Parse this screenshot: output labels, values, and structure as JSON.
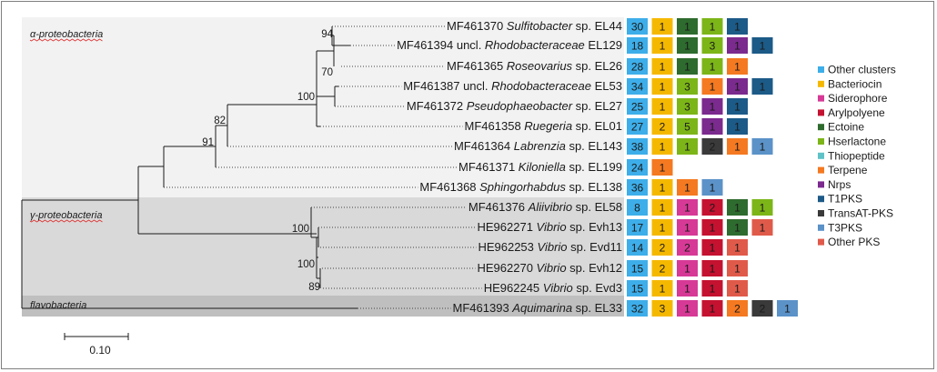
{
  "clades": [
    {
      "label": "α-proteobacteria",
      "color": "#f2f2f2"
    },
    {
      "label": "γ-proteobacteria",
      "color": "#d9d9d9"
    },
    {
      "label": "flavobacteria",
      "color": "#bfbfbf"
    }
  ],
  "taxa": [
    {
      "acc": "MF461370",
      "pre": "",
      "genus": "Sulfitobacter",
      "post": "sp. EL44",
      "counts": [
        30,
        1,
        1,
        1,
        1
      ],
      "types": [
        "other",
        "bac",
        "ect",
        "hse",
        "t1pks"
      ]
    },
    {
      "acc": "MF461394",
      "pre": "uncl.",
      "genus": "Rhodobacteraceae",
      "post": "EL129",
      "counts": [
        18,
        1,
        1,
        3,
        1,
        1
      ],
      "types": [
        "other",
        "bac",
        "ect",
        "hse",
        "nrps",
        "t1pks"
      ]
    },
    {
      "acc": "MF461365",
      "pre": "",
      "genus": "Roseovarius",
      "post": "sp. EL26",
      "counts": [
        28,
        1,
        1,
        1,
        1
      ],
      "types": [
        "other",
        "bac",
        "ect",
        "hse",
        "ter"
      ]
    },
    {
      "acc": "MF461387",
      "pre": "uncl.",
      "genus": "Rhodobacteraceae",
      "post": "EL53",
      "counts": [
        34,
        1,
        3,
        1,
        1,
        1
      ],
      "types": [
        "other",
        "bac",
        "hse",
        "ter",
        "nrps",
        "t1pks"
      ]
    },
    {
      "acc": "MF461372",
      "pre": "",
      "genus": "Pseudophaeobacter",
      "post": "sp. EL27",
      "counts": [
        25,
        1,
        3,
        1,
        1
      ],
      "types": [
        "other",
        "bac",
        "hse",
        "nrps",
        "t1pks"
      ]
    },
    {
      "acc": "MF461358",
      "pre": "",
      "genus": "Ruegeria",
      "post": "sp. EL01",
      "counts": [
        27,
        2,
        5,
        1,
        1
      ],
      "types": [
        "other",
        "bac",
        "hse",
        "nrps",
        "t1pks"
      ]
    },
    {
      "acc": "MF461364",
      "pre": "",
      "genus": "Labrenzia",
      "post": "sp. EL143",
      "counts": [
        38,
        1,
        1,
        2,
        1,
        1
      ],
      "types": [
        "other",
        "bac",
        "hse",
        "trans",
        "ter",
        "t3pks"
      ]
    },
    {
      "acc": "MF461371",
      "pre": "",
      "genus": "Kiloniella",
      "post": "sp. EL199",
      "counts": [
        24,
        1
      ],
      "types": [
        "other",
        "ter"
      ]
    },
    {
      "acc": "MF461368",
      "pre": "",
      "genus": "Sphingorhabdus",
      "post": "sp. EL138",
      "counts": [
        36,
        1,
        1,
        1
      ],
      "types": [
        "other",
        "bac",
        "ter",
        "t3pks"
      ]
    },
    {
      "acc": "MF461376",
      "pre": "",
      "genus": "Aliivibrio",
      "post": "sp. EL58",
      "counts": [
        8,
        1,
        1,
        2,
        1,
        1
      ],
      "types": [
        "other",
        "bac",
        "sid",
        "ary",
        "ect",
        "hse"
      ]
    },
    {
      "acc": "HE962271",
      "pre": "",
      "genus": "Vibrio",
      "post": "sp. Evh13",
      "counts": [
        17,
        1,
        1,
        1,
        1,
        1
      ],
      "types": [
        "other",
        "bac",
        "sid",
        "ary",
        "ect",
        "opks"
      ]
    },
    {
      "acc": "HE962253",
      "pre": "",
      "genus": "Vibrio",
      "post": "sp. Evd11",
      "counts": [
        14,
        2,
        2,
        1,
        1
      ],
      "types": [
        "other",
        "bac",
        "sid",
        "ary",
        "opks"
      ]
    },
    {
      "acc": "HE962270",
      "pre": "",
      "genus": "Vibrio",
      "post": "sp. Evh12",
      "counts": [
        15,
        2,
        1,
        1,
        1
      ],
      "types": [
        "other",
        "bac",
        "sid",
        "ary",
        "opks"
      ]
    },
    {
      "acc": "HE962245",
      "pre": "",
      "genus": "Vibrio",
      "post": "sp. Evd3",
      "counts": [
        15,
        1,
        1,
        1,
        1
      ],
      "types": [
        "other",
        "bac",
        "sid",
        "ary",
        "opks"
      ]
    },
    {
      "acc": "MF461393",
      "pre": "",
      "genus": "Aquimarina",
      "post": "sp. EL33",
      "counts": [
        32,
        3,
        1,
        1,
        2,
        2,
        1
      ],
      "types": [
        "other",
        "bac",
        "sid",
        "ary",
        "ter",
        "trans",
        "t3pks"
      ]
    }
  ],
  "bootstrap": [
    "94",
    "70",
    "100",
    "82",
    "91",
    "100",
    "100",
    "89"
  ],
  "legend": [
    {
      "key": "other",
      "label": "Other clusters",
      "color": "#3daee9"
    },
    {
      "key": "bac",
      "label": "Bacteriocin",
      "color": "#f5b800"
    },
    {
      "key": "sid",
      "label": "Siderophore",
      "color": "#d63a96"
    },
    {
      "key": "ary",
      "label": "Arylpolyene",
      "color": "#c41230"
    },
    {
      "key": "ect",
      "label": "Ectoine",
      "color": "#2e6b2e"
    },
    {
      "key": "hse",
      "label": "Hserlactone",
      "color": "#7cb518"
    },
    {
      "key": "thio",
      "label": "Thiopeptide",
      "color": "#5fc2c6"
    },
    {
      "key": "ter",
      "label": "Terpene",
      "color": "#f47920"
    },
    {
      "key": "nrps",
      "label": "Nrps",
      "color": "#7b2a8e"
    },
    {
      "key": "t1pks",
      "label": "T1PKS",
      "color": "#1c5a87"
    },
    {
      "key": "trans",
      "label": "TransAT-PKS",
      "color": "#3a3a3a"
    },
    {
      "key": "t3pks",
      "label": "T3PKS",
      "color": "#5b92c8"
    },
    {
      "key": "opks",
      "label": "Other PKS",
      "color": "#e05a4a"
    }
  ],
  "scale_label": "0.10"
}
